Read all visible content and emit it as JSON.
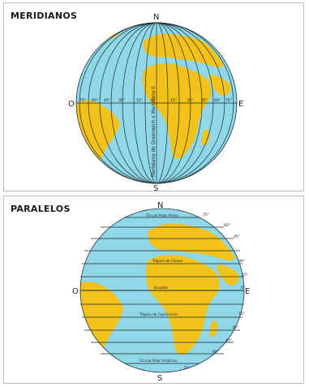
{
  "meridians": {
    "title": "MERIDIANOS",
    "north": "N",
    "south": "S",
    "west": "O",
    "east": "E",
    "greenwich_label": "Meridiano de Greenwich o Meridiano 0",
    "degree_labels": [
      "75°",
      "60°",
      "45°",
      "30°",
      "15°",
      "0°",
      "15°",
      "30°",
      "45°",
      "60°",
      "75°"
    ]
  },
  "parallels": {
    "title": "PARALELOS",
    "north": "N",
    "south": "S",
    "west": "O",
    "east": "E",
    "line_labels": {
      "arctic": "Círculo Polar Ártico",
      "cancer": "Trópico de Cáncer",
      "equator": "Ecuador",
      "capricorn": "Trópico de Capricornio",
      "antarctic": "Círculo Polar Antártico"
    },
    "degree_labels": [
      "75°",
      "60°",
      "45°",
      "30°",
      "15°",
      "0°",
      "15°",
      "30°",
      "45°",
      "60°",
      "75°"
    ]
  },
  "colors": {
    "ocean": "#8fd8ea",
    "land": "#f2c21b",
    "lines": "#1f2a30"
  }
}
